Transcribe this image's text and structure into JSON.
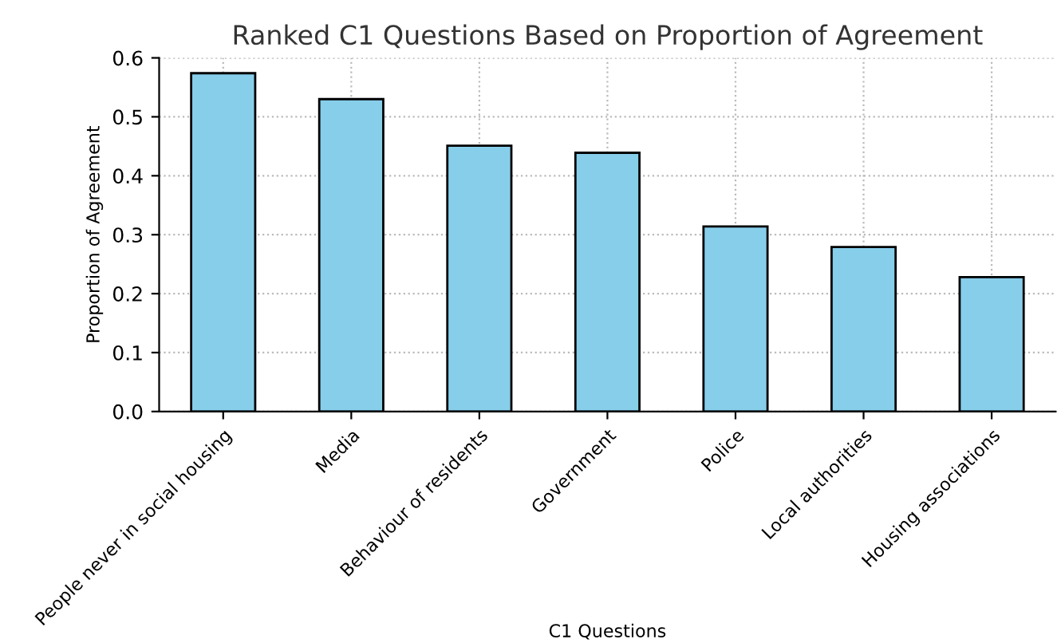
{
  "chart_data": {
    "type": "bar",
    "title": "Ranked C1 Questions Based on Proportion of Agreement",
    "xlabel": "C1 Questions",
    "ylabel": "Proportion of Agreement",
    "categories": [
      "People never in social housing",
      "Media",
      "Behaviour of residents",
      "Government",
      "Police",
      "Local authorities",
      "Housing associations"
    ],
    "values": [
      0.574,
      0.53,
      0.451,
      0.439,
      0.314,
      0.279,
      0.228
    ],
    "color": "#87ceeb",
    "ylim": [
      0,
      0.6
    ],
    "yticks": [
      {
        "value": 0,
        "label": "0.0"
      },
      0.1,
      0.2,
      0.3,
      0.4,
      0.5,
      0.6
    ],
    "grid": true
  }
}
